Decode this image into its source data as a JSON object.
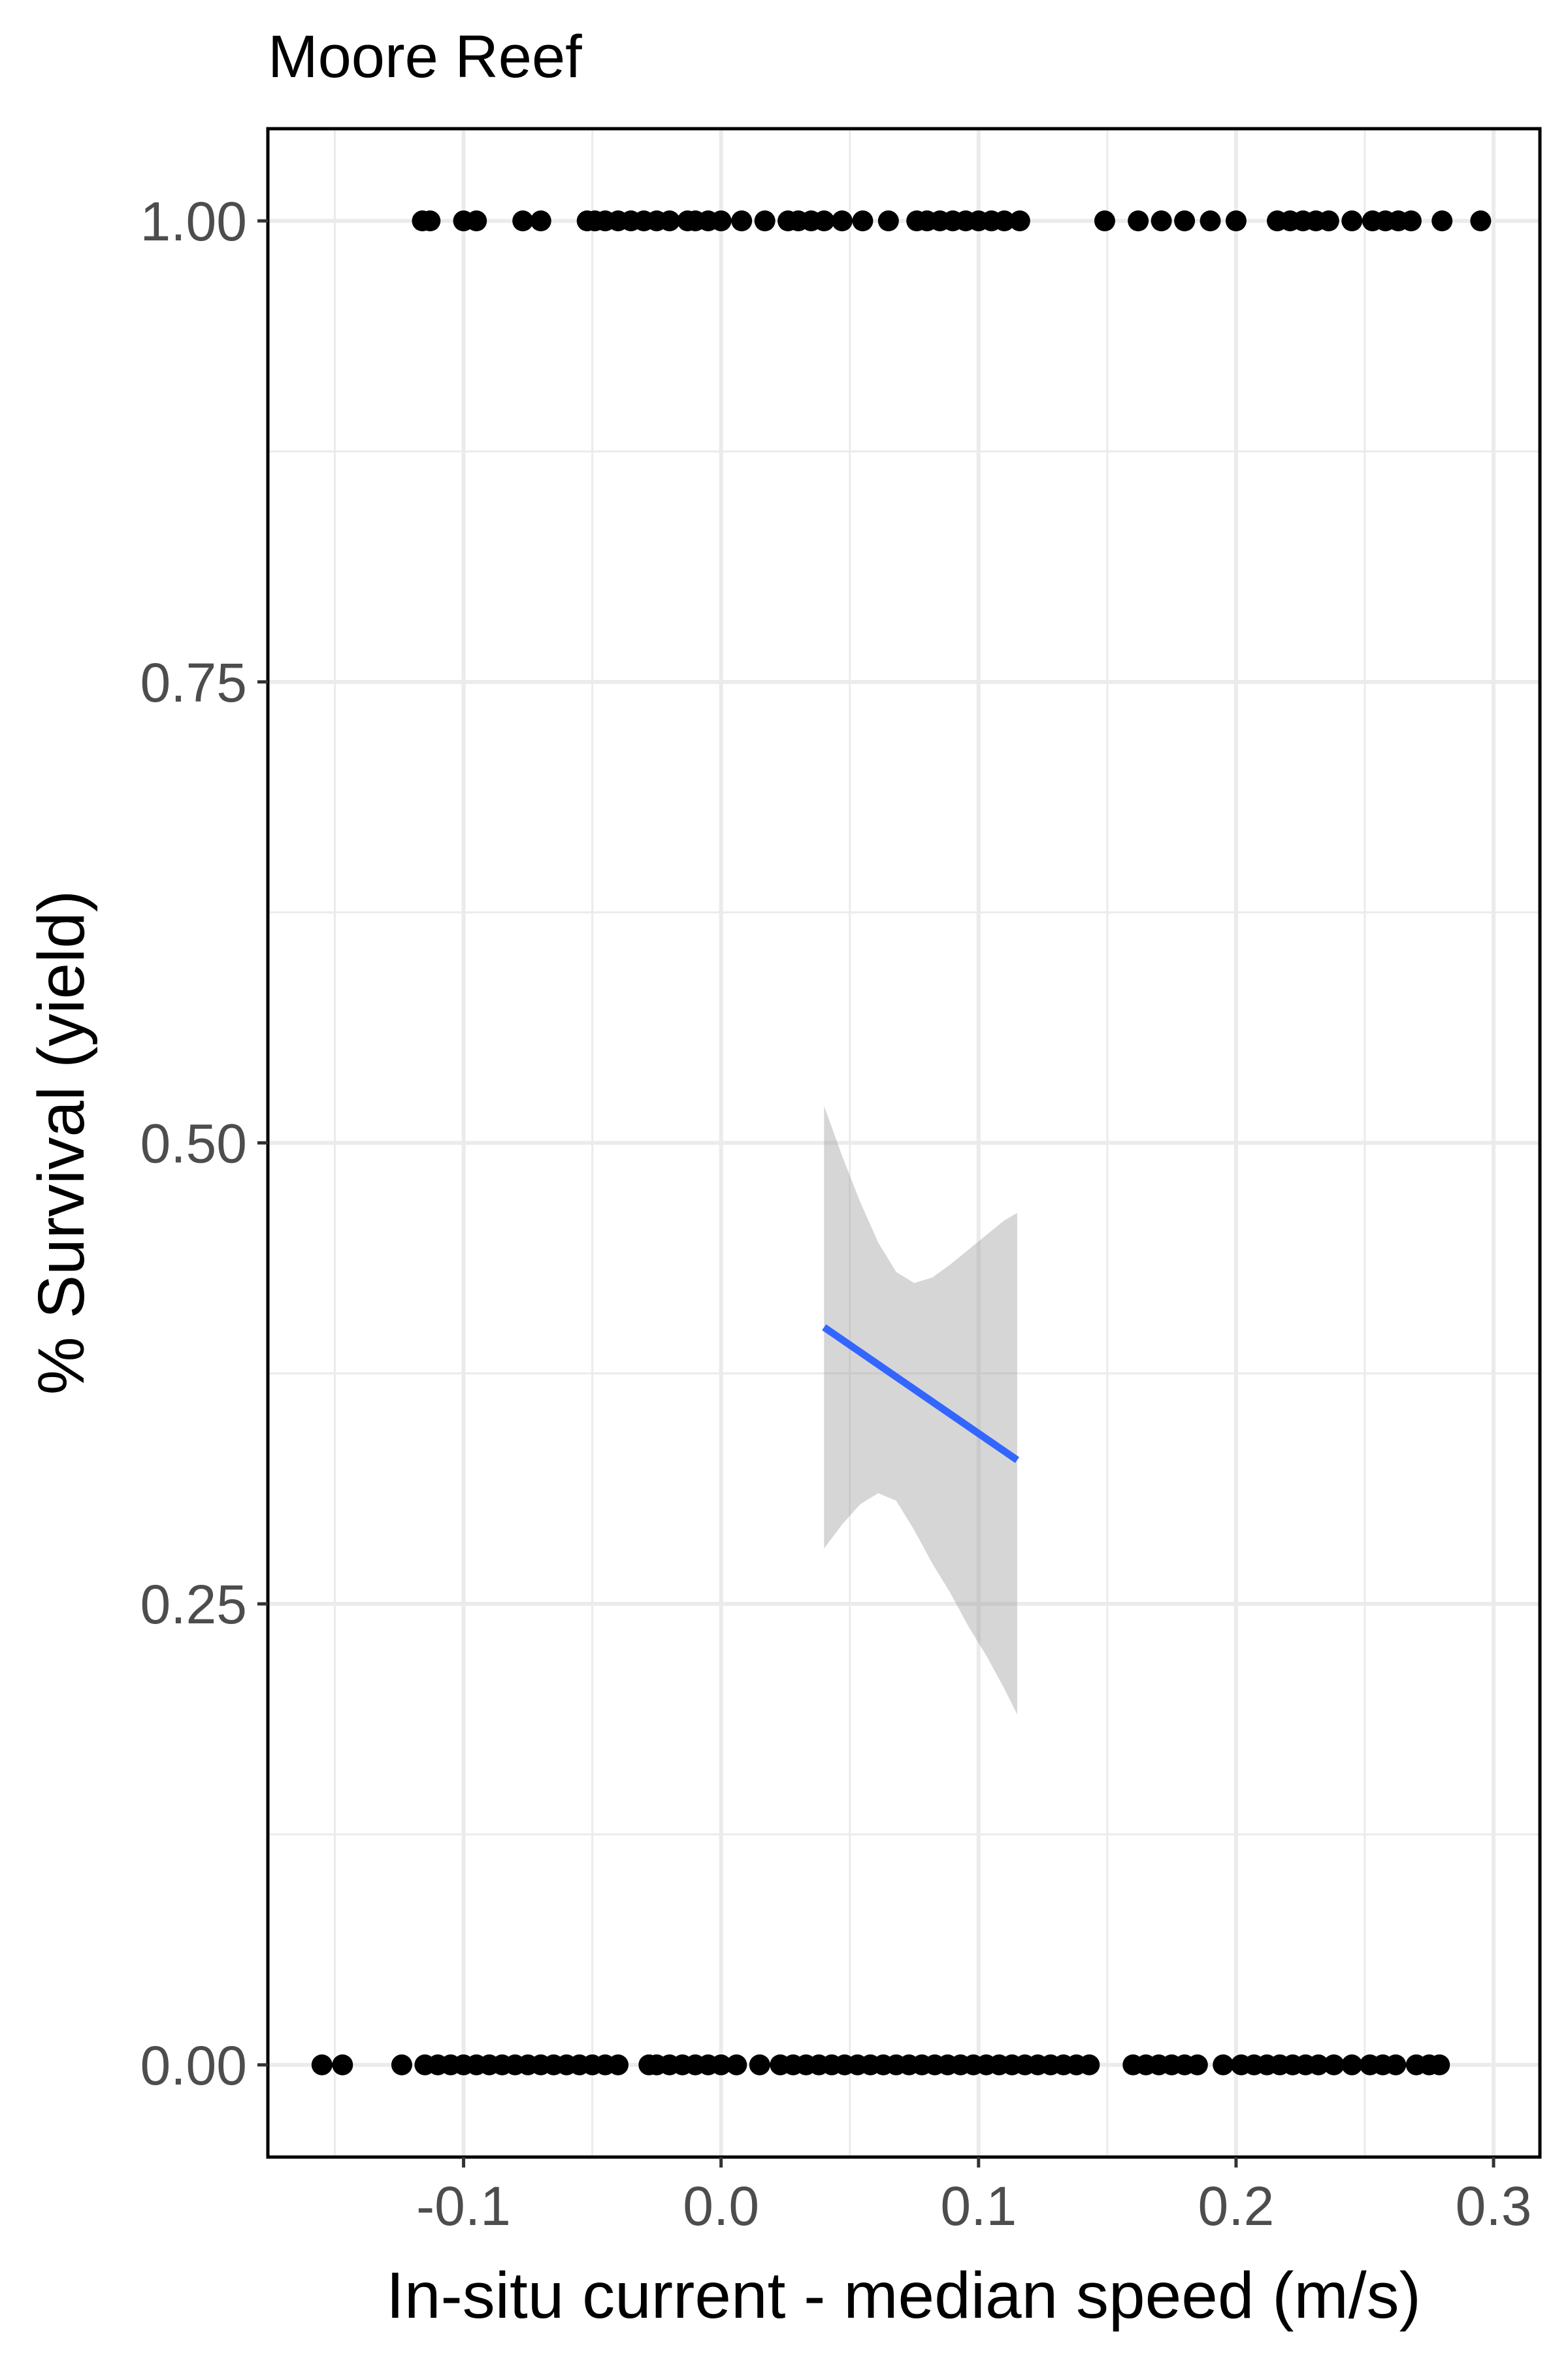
{
  "chart_data": {
    "type": "scatter",
    "title": "Moore Reef",
    "xlabel": "In-situ current - median speed (m/s)",
    "ylabel": "% Survival (yield)",
    "xlim": [
      -0.176,
      0.318
    ],
    "ylim": [
      -0.05,
      1.05
    ],
    "x_ticks": [
      -0.1,
      0.0,
      0.1,
      0.2,
      0.3
    ],
    "x_tick_labels": [
      "-0.1",
      "0.0",
      "0.1",
      "0.2",
      "0.3"
    ],
    "y_ticks": [
      0.0,
      0.25,
      0.5,
      0.75,
      1.0
    ],
    "y_tick_labels": [
      "0.00",
      "0.25",
      "0.50",
      "0.75",
      "1.00"
    ],
    "grid": true,
    "legend": "none",
    "colors": {
      "points": "#000000",
      "fit_line": "#3366ff",
      "ribbon": "#999999",
      "grid": "#ebebeb",
      "border": "#000000"
    },
    "series": [
      {
        "type": "points",
        "y_value": 1.0,
        "x": [
          -0.116,
          -0.113,
          -0.1,
          -0.095,
          -0.077,
          -0.07,
          -0.052,
          -0.049,
          -0.045,
          -0.04,
          -0.035,
          -0.03,
          -0.025,
          -0.02,
          -0.013,
          -0.01,
          -0.005,
          0.0,
          0.008,
          0.017,
          0.026,
          0.03,
          0.035,
          0.04,
          0.047,
          0.055,
          0.065,
          0.076,
          0.08,
          0.085,
          0.09,
          0.095,
          0.1,
          0.105,
          0.11,
          0.116,
          0.149,
          0.162,
          0.171,
          0.18,
          0.19,
          0.2,
          0.216,
          0.221,
          0.226,
          0.231,
          0.236,
          0.245,
          0.253,
          0.258,
          0.263,
          0.268,
          0.28,
          0.295
        ]
      },
      {
        "type": "points",
        "y_value": 0.0,
        "x": [
          -0.155,
          -0.147,
          -0.124,
          -0.115,
          -0.11,
          -0.105,
          -0.1,
          -0.095,
          -0.09,
          -0.085,
          -0.08,
          -0.075,
          -0.07,
          -0.065,
          -0.06,
          -0.055,
          -0.05,
          -0.045,
          -0.04,
          -0.028,
          -0.025,
          -0.02,
          -0.015,
          -0.01,
          -0.005,
          0.0,
          0.006,
          0.015,
          0.023,
          0.028,
          0.033,
          0.038,
          0.043,
          0.048,
          0.053,
          0.058,
          0.063,
          0.068,
          0.073,
          0.078,
          0.083,
          0.088,
          0.093,
          0.098,
          0.103,
          0.108,
          0.113,
          0.118,
          0.123,
          0.128,
          0.133,
          0.138,
          0.143,
          0.16,
          0.165,
          0.17,
          0.175,
          0.18,
          0.185,
          0.195,
          0.202,
          0.207,
          0.212,
          0.217,
          0.222,
          0.227,
          0.232,
          0.238,
          0.245,
          0.252,
          0.257,
          0.262,
          0.27,
          0.275,
          0.279
        ]
      },
      {
        "type": "fit",
        "x": [
          0.04,
          0.115
        ],
        "y": [
          0.4,
          0.328
        ],
        "band_x": [
          0.04,
          0.047,
          0.054,
          0.061,
          0.068,
          0.075,
          0.082,
          0.089,
          0.096,
          0.103,
          0.11,
          0.115
        ],
        "band_upper": [
          0.52,
          0.493,
          0.468,
          0.446,
          0.43,
          0.424,
          0.427,
          0.434,
          0.442,
          0.45,
          0.458,
          0.462
        ],
        "band_lower": [
          0.28,
          0.293,
          0.304,
          0.31,
          0.306,
          0.29,
          0.272,
          0.256,
          0.238,
          0.222,
          0.204,
          0.19
        ]
      }
    ]
  }
}
